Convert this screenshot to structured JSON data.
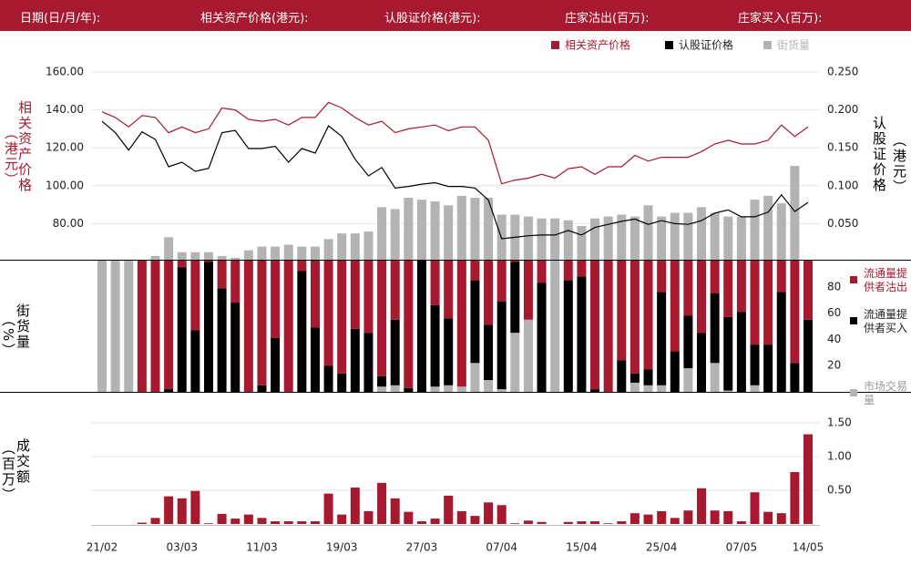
{
  "header": [
    "日期(日/月/年):",
    "相关资产价格(港元):",
    "认股证价格(港元):",
    "庄家沽出(百万):",
    "庄家买入(百万):"
  ],
  "chart_data": [
    {
      "type": "line",
      "legend": "top-right",
      "grid": true,
      "ylabel": [
        "相关资产价格",
        "（港元）"
      ],
      "y2label": [
        "认股证价格",
        "（港元）"
      ],
      "ylim": [
        60,
        160
      ],
      "yticks": [
        {
          "value": 80,
          "label": "80.00"
        },
        {
          "value": 100,
          "label": "100.00"
        },
        {
          "value": 120,
          "label": "120.00"
        },
        {
          "value": 140,
          "label": "140.00"
        },
        {
          "value": 160,
          "label": "160.00"
        }
      ],
      "y2lim": [
        0,
        0.25
      ],
      "y2ticks": [
        {
          "value": 0.05,
          "label": "0.050"
        },
        {
          "value": 0.1,
          "label": "0.100"
        },
        {
          "value": 0.15,
          "label": "0.150"
        },
        {
          "value": 0.2,
          "label": "0.200"
        },
        {
          "value": 0.25,
          "label": "0.250"
        }
      ],
      "y3lim": [
        0,
        100
      ],
      "series": [
        {
          "name": "相关资产价格",
          "color": "#a6192e",
          "values": [
            139,
            136,
            131,
            137,
            136,
            128,
            131,
            128,
            130,
            141,
            140,
            135,
            134,
            135,
            132,
            136,
            136,
            144,
            141,
            136,
            132,
            134,
            128,
            130,
            131,
            132,
            129,
            131,
            131,
            124,
            101,
            103,
            104,
            106,
            104,
            109,
            110,
            106,
            110,
            110,
            116,
            113,
            115,
            115,
            115,
            118,
            122,
            124,
            122,
            122,
            124,
            132,
            126,
            131
          ]
        },
        {
          "name": "认股证价格",
          "color": "#000000",
          "axis": "y2",
          "values": [
            0.185,
            0.17,
            0.147,
            0.171,
            0.161,
            0.125,
            0.131,
            0.119,
            0.123,
            0.17,
            0.173,
            0.149,
            0.149,
            0.152,
            0.131,
            0.149,
            0.143,
            0.179,
            0.165,
            0.135,
            0.113,
            0.124,
            0.097,
            0.099,
            0.102,
            0.104,
            0.099,
            0.099,
            0.097,
            0.081,
            0.03,
            0.032,
            0.034,
            0.035,
            0.035,
            0.041,
            0.035,
            0.045,
            0.049,
            0.053,
            0.056,
            0.049,
            0.054,
            0.05,
            0.049,
            0.054,
            0.064,
            0.068,
            0.059,
            0.059,
            0.065,
            0.088,
            0.066,
            0.078
          ]
        },
        {
          "name": "街货量",
          "color": "#b3b3b3",
          "type": "bar",
          "axis": "y3",
          "values": [
            0,
            0,
            0,
            0,
            2,
            12,
            4,
            4,
            4,
            2,
            1,
            5,
            7,
            7,
            8,
            7,
            7,
            11,
            14,
            14,
            15,
            28,
            27,
            33,
            32,
            31,
            29,
            34,
            33,
            33,
            24,
            24,
            23,
            22,
            22,
            21,
            18,
            22,
            23,
            24,
            23,
            29,
            23,
            25,
            25,
            28,
            25,
            23,
            23,
            32,
            34,
            30,
            50,
            0
          ]
        }
      ]
    },
    {
      "type": "bar",
      "stacked": true,
      "legend": "right",
      "ylabel": [
        "街货量",
        "（%）"
      ],
      "ylim": [
        0,
        100
      ],
      "yticks": [
        20,
        40,
        60,
        80
      ],
      "series": [
        {
          "name": "流通量提供者沽出",
          "color": "#a6192e",
          "values": [
            0,
            0,
            0,
            100,
            100,
            98,
            5,
            53,
            1,
            21,
            32,
            100,
            95,
            59,
            100,
            8,
            51,
            80,
            86,
            52,
            55,
            88,
            45,
            97,
            0,
            34,
            44,
            96,
            15,
            49,
            31,
            1,
            45,
            17,
            0,
            15,
            12,
            98,
            100,
            76,
            86,
            83,
            24,
            69,
            42,
            55,
            25,
            43,
            39,
            64,
            64,
            24,
            78,
            45
          ]
        },
        {
          "name": "流通量提供者买入",
          "color": "#000000",
          "values": [
            0,
            0,
            0,
            0,
            0,
            2,
            95,
            47,
            99,
            79,
            68,
            0,
            5,
            41,
            0,
            92,
            49,
            20,
            14,
            48,
            45,
            8,
            50,
            3,
            100,
            62,
            51,
            0,
            63,
            42,
            67,
            54,
            0,
            83,
            0,
            85,
            88,
            2,
            0,
            24,
            7,
            12,
            71,
            31,
            40,
            45,
            53,
            56,
            61,
            31,
            36,
            76,
            22,
            55
          ]
        },
        {
          "name": "市场交易量",
          "color": "#b3b3b3",
          "values": [
            100,
            100,
            100,
            0,
            0,
            0,
            0,
            0,
            0,
            0,
            0,
            0,
            0,
            0,
            0,
            0,
            0,
            0,
            0,
            0,
            0,
            4,
            5,
            0,
            0,
            4,
            5,
            4,
            22,
            9,
            2,
            45,
            55,
            0,
            100,
            0,
            0,
            0,
            0,
            0,
            7,
            5,
            5,
            0,
            18,
            0,
            22,
            1,
            0,
            5,
            0,
            0,
            0,
            0
          ]
        }
      ]
    },
    {
      "type": "bar",
      "grid": true,
      "color": "#a6192e",
      "ylabel": [
        "成交额",
        "（百万）"
      ],
      "ylim": [
        0,
        1.5
      ],
      "yticks": [
        {
          "value": 0.5,
          "label": "0.50"
        },
        {
          "value": 1,
          "label": "1.00"
        },
        {
          "value": 1.5,
          "label": "1.50"
        }
      ],
      "categories": [
        "21/02",
        null,
        null,
        null,
        null,
        null,
        "03/03",
        null,
        null,
        null,
        null,
        null,
        "11/03",
        null,
        null,
        null,
        null,
        null,
        "19/03",
        null,
        null,
        null,
        null,
        null,
        "27/03",
        null,
        null,
        null,
        null,
        null,
        "07/04",
        null,
        null,
        null,
        null,
        null,
        "15/04",
        null,
        null,
        null,
        null,
        null,
        "25/04",
        null,
        null,
        null,
        null,
        null,
        "07/05",
        null,
        null,
        null,
        null,
        "14/05"
      ],
      "values": [
        0,
        0,
        0,
        0.02,
        0.09,
        0.41,
        0.38,
        0.49,
        0.01,
        0.15,
        0.08,
        0.14,
        0.09,
        0.04,
        0.04,
        0.04,
        0.04,
        0.45,
        0.14,
        0.54,
        0.19,
        0.61,
        0.38,
        0.18,
        0.04,
        0.08,
        0.42,
        0.19,
        0.12,
        0.32,
        0.28,
        0.01,
        0.05,
        0.03,
        0,
        0.03,
        0.04,
        0.04,
        0.01,
        0.04,
        0.16,
        0.14,
        0.19,
        0.09,
        0.2,
        0.53,
        0.2,
        0.19,
        0.04,
        0.47,
        0.18,
        0.16,
        0.77,
        1.33
      ]
    }
  ]
}
